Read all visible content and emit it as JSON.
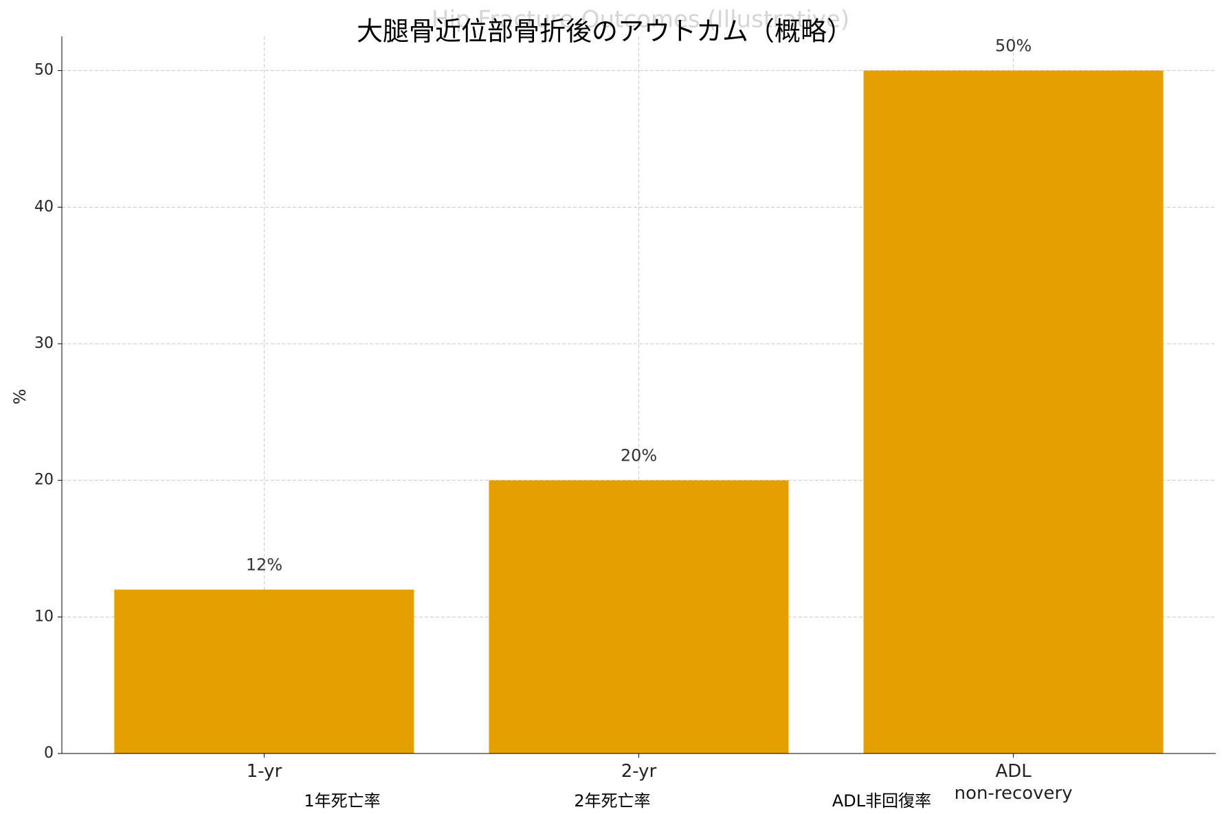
{
  "chart_data": {
    "type": "bar",
    "title": "大腿骨近位部骨折後のアウトカム（概略）",
    "background_title": "Hip Fracture Outcomes (Illustrative)",
    "y_label": "%",
    "categories": [
      "1-yr",
      "2-yr",
      "ADL\nnon-recovery"
    ],
    "sublabels": [
      "1年死亡率",
      "2年死亡率",
      "ADL非回復率"
    ],
    "values": [
      12,
      20,
      50
    ],
    "value_labels": [
      "12%",
      "20%",
      "50%"
    ],
    "color": "#e69f00",
    "ylim": [
      0,
      52.5
    ],
    "yticks": [
      0,
      10,
      20,
      30,
      40,
      50
    ],
    "grid": true
  }
}
